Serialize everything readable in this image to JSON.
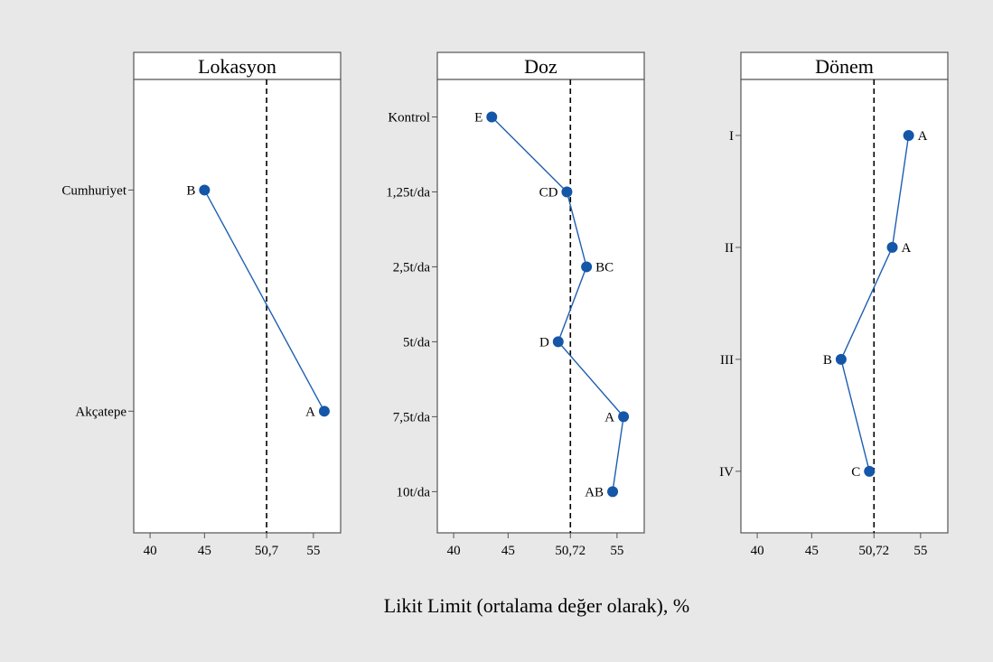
{
  "chart_data": {
    "type": "scatter",
    "xlabel": "Likit Limit (ortalama değer olarak), %",
    "xlim": [
      38.5,
      57.5
    ],
    "colors": {
      "series": "#1f5fb0",
      "point": "#1456a8",
      "background": "#e8e8e8"
    },
    "panels": [
      {
        "title": "Lokasyon",
        "reference_value": 50.7,
        "x_ticks": [
          40,
          45,
          "50,7",
          55
        ],
        "categories": [
          "Cumhuriyet",
          "Akçatepe"
        ],
        "values": [
          45.0,
          56.0
        ],
        "groups": [
          "B",
          "A"
        ]
      },
      {
        "title": "Doz",
        "reference_value": 50.72,
        "x_ticks": [
          40,
          45,
          "50,72",
          55
        ],
        "categories": [
          "Kontrol",
          "1,25t/da",
          "2,5t/da",
          "5t/da",
          "7,5t/da",
          "10t/da"
        ],
        "values": [
          43.5,
          50.4,
          52.2,
          49.6,
          55.6,
          54.6
        ],
        "groups": [
          "E",
          "CD",
          "BC",
          "D",
          "A",
          "AB"
        ]
      },
      {
        "title": "Dönem",
        "reference_value": 50.72,
        "x_ticks": [
          40,
          45,
          "50,72",
          55
        ],
        "categories": [
          "I",
          "II",
          "III",
          "IV"
        ],
        "values": [
          53.9,
          52.4,
          47.7,
          50.3
        ],
        "groups": [
          "A",
          "A",
          "B",
          "C"
        ]
      }
    ]
  }
}
